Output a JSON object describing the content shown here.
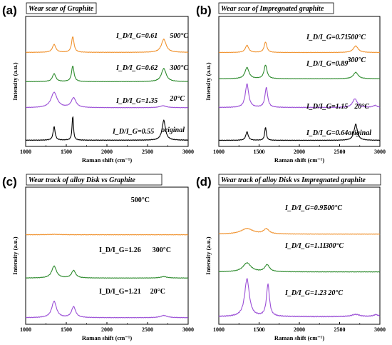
{
  "figure": {
    "colors": {
      "orange": "#f0922e",
      "green": "#2e8b2e",
      "purple": "#9b4fd6",
      "black": "#000000"
    },
    "x_ticks": [
      "1000",
      "1500",
      "2000",
      "2500",
      "3000"
    ],
    "xlabel": "Raman shift (cm⁻¹)",
    "ylabel": "Intensity (a.u.)"
  },
  "chart_data": [
    {
      "type": "line",
      "panel_label": "(a)",
      "title": "Wear scar of Graphite",
      "xlabel": "Raman shift (cm⁻¹)",
      "ylabel": "Intensity (a.u.)",
      "xlim": [
        1000,
        3000
      ],
      "grid": false,
      "annotation_style": "italic",
      "series": [
        {
          "name": "500°C",
          "ratio_label": "I_D/I_G=0.61",
          "temp_label": "500°C",
          "color": "orange",
          "offset": 3.0,
          "scale": 0.6,
          "baseline": 0.03,
          "peaks": [
            {
              "x": 1350,
              "h": 0.45,
              "w": 25
            },
            {
              "x": 1580,
              "h": 0.9,
              "w": 18
            },
            {
              "x": 2700,
              "h": 0.75,
              "w": 35
            }
          ]
        },
        {
          "name": "300°C",
          "ratio_label": "I_D/I_G=0.62",
          "temp_label": "300°C",
          "color": "green",
          "offset": 2.0,
          "scale": 0.6,
          "baseline": 0.03,
          "peaks": [
            {
              "x": 1350,
              "h": 0.45,
              "w": 25
            },
            {
              "x": 1580,
              "h": 0.9,
              "w": 18
            },
            {
              "x": 2700,
              "h": 0.75,
              "w": 35
            }
          ]
        },
        {
          "name": "20°C",
          "ratio_label": "I_D/I_G=1.35",
          "temp_label": "20°C",
          "color": "purple",
          "offset": 1.1,
          "scale": 0.55,
          "baseline": 0.05,
          "peaks": [
            {
              "x": 1350,
              "h": 0.95,
              "w": 45
            },
            {
              "x": 1590,
              "h": 0.6,
              "w": 35
            },
            {
              "x": 2690,
              "h": 0.12,
              "w": 50
            }
          ]
        },
        {
          "name": "original",
          "ratio_label": "I_D/I_G=0.55",
          "temp_label": "original",
          "color": "black",
          "offset": 0.0,
          "scale": 0.85,
          "baseline": 0.02,
          "peaks": [
            {
              "x": 1350,
              "h": 0.55,
              "w": 15
            },
            {
              "x": 1580,
              "h": 1.0,
              "w": 10
            },
            {
              "x": 2700,
              "h": 0.8,
              "w": 25
            }
          ]
        }
      ]
    },
    {
      "type": "line",
      "panel_label": "(b)",
      "title": "Wear scar of Impregnated graphite",
      "xlabel": "Raman shift (cm⁻¹)",
      "ylabel": "Intensity (a.u.)",
      "xlim": [
        1000,
        3000
      ],
      "grid": false,
      "annotation_style": "italic",
      "series": [
        {
          "name": "500°C",
          "ratio_label": "I_D/I_G=0.71",
          "temp_label": "500°C",
          "color": "orange",
          "offset": 3.0,
          "scale": 0.45,
          "baseline": 0.03,
          "peaks": [
            {
              "x": 1350,
              "h": 0.55,
              "w": 25
            },
            {
              "x": 1580,
              "h": 0.8,
              "w": 20
            },
            {
              "x": 2700,
              "h": 0.5,
              "w": 35
            }
          ]
        },
        {
          "name": "300°C",
          "ratio_label": "I_D/I_G=0.89",
          "temp_label": "300°C",
          "color": "green",
          "offset": 2.1,
          "scale": 0.55,
          "baseline": 0.03,
          "peaks": [
            {
              "x": 1350,
              "h": 0.7,
              "w": 30
            },
            {
              "x": 1580,
              "h": 0.85,
              "w": 22
            },
            {
              "x": 2700,
              "h": 0.4,
              "w": 35
            }
          ]
        },
        {
          "name": "20°C",
          "ratio_label": "I_D/I_G=1.15",
          "temp_label": "20°C",
          "color": "purple",
          "offset": 1.1,
          "scale": 0.85,
          "baseline": 0.04,
          "peaks": [
            {
              "x": 1350,
              "h": 0.95,
              "w": 25
            },
            {
              "x": 1590,
              "h": 0.8,
              "w": 20
            },
            {
              "x": 2690,
              "h": 0.35,
              "w": 35
            },
            {
              "x": 2940,
              "h": 0.08,
              "w": 30
            }
          ]
        },
        {
          "name": "original",
          "ratio_label": "I_D/I_G=0.64",
          "temp_label": "original",
          "color": "black",
          "offset": 0.0,
          "scale": 0.65,
          "baseline": 0.02,
          "peaks": [
            {
              "x": 1350,
              "h": 0.45,
              "w": 18
            },
            {
              "x": 1580,
              "h": 0.7,
              "w": 12
            },
            {
              "x": 2700,
              "h": 0.85,
              "w": 25
            }
          ]
        }
      ]
    },
    {
      "type": "line",
      "panel_label": "(c)",
      "title": "Wear track of alloy Disk vs Graphite",
      "xlabel": "Raman shift (cm⁻¹)",
      "ylabel": "Intensity (a.u.)",
      "xlim": [
        1000,
        3000
      ],
      "grid": false,
      "annotation_style": "upright",
      "series": [
        {
          "name": "500°C",
          "ratio_label": "",
          "temp_label": "500°C",
          "color": "orange",
          "offset": 2.1,
          "scale": 0.5,
          "baseline": 0.02,
          "peaks": [
            {
              "x": 1350,
              "h": 0.02,
              "w": 80
            }
          ]
        },
        {
          "name": "300°C",
          "ratio_label": "I_D/I_G=1.26",
          "temp_label": "300°C",
          "color": "green",
          "offset": 1.0,
          "scale": 0.5,
          "baseline": 0.04,
          "peaks": [
            {
              "x": 1350,
              "h": 0.6,
              "w": 35
            },
            {
              "x": 1590,
              "h": 0.38,
              "w": 30
            },
            {
              "x": 2700,
              "h": 0.07,
              "w": 50
            }
          ]
        },
        {
          "name": "20°C",
          "ratio_label": "I_D/I_G=1.21",
          "temp_label": "20°C",
          "color": "purple",
          "offset": 0.0,
          "scale": 0.55,
          "baseline": 0.04,
          "peaks": [
            {
              "x": 1350,
              "h": 0.75,
              "w": 35
            },
            {
              "x": 1590,
              "h": 0.5,
              "w": 30
            },
            {
              "x": 2700,
              "h": 0.1,
              "w": 50
            }
          ]
        }
      ]
    },
    {
      "type": "line",
      "panel_label": "(d)",
      "title": "Wear track of alloy Disk vs Impregnated graphite",
      "xlabel": "Raman shift (cm⁻¹)",
      "ylabel": "Intensity (a.u.)",
      "xlim": [
        1000,
        3000
      ],
      "grid": false,
      "annotation_style": "italic",
      "series": [
        {
          "name": "500°C",
          "ratio_label": "I_D/I_G=0.97",
          "temp_label": "500°C",
          "color": "orange",
          "offset": 2.1,
          "scale": 0.5,
          "baseline": 0.05,
          "peaks": [
            {
              "x": 1350,
              "h": 0.28,
              "w": 90
            },
            {
              "x": 1590,
              "h": 0.25,
              "w": 40
            }
          ]
        },
        {
          "name": "300°C",
          "ratio_label": "I_D/I_G=1.11",
          "temp_label": "300°C",
          "color": "green",
          "offset": 1.15,
          "scale": 0.5,
          "baseline": 0.05,
          "peaks": [
            {
              "x": 1350,
              "h": 0.45,
              "w": 60
            },
            {
              "x": 1600,
              "h": 0.35,
              "w": 35
            }
          ]
        },
        {
          "name": "20°C",
          "ratio_label": "I_D/I_G=1.23",
          "temp_label": "20°C",
          "color": "purple",
          "offset": 0.0,
          "scale": 0.95,
          "baseline": 0.05,
          "peaks": [
            {
              "x": 1350,
              "h": 1.0,
              "w": 35
            },
            {
              "x": 1610,
              "h": 0.85,
              "w": 22
            },
            {
              "x": 2700,
              "h": 0.06,
              "w": 60
            },
            {
              "x": 2950,
              "h": 0.05,
              "w": 40
            }
          ]
        }
      ]
    }
  ]
}
